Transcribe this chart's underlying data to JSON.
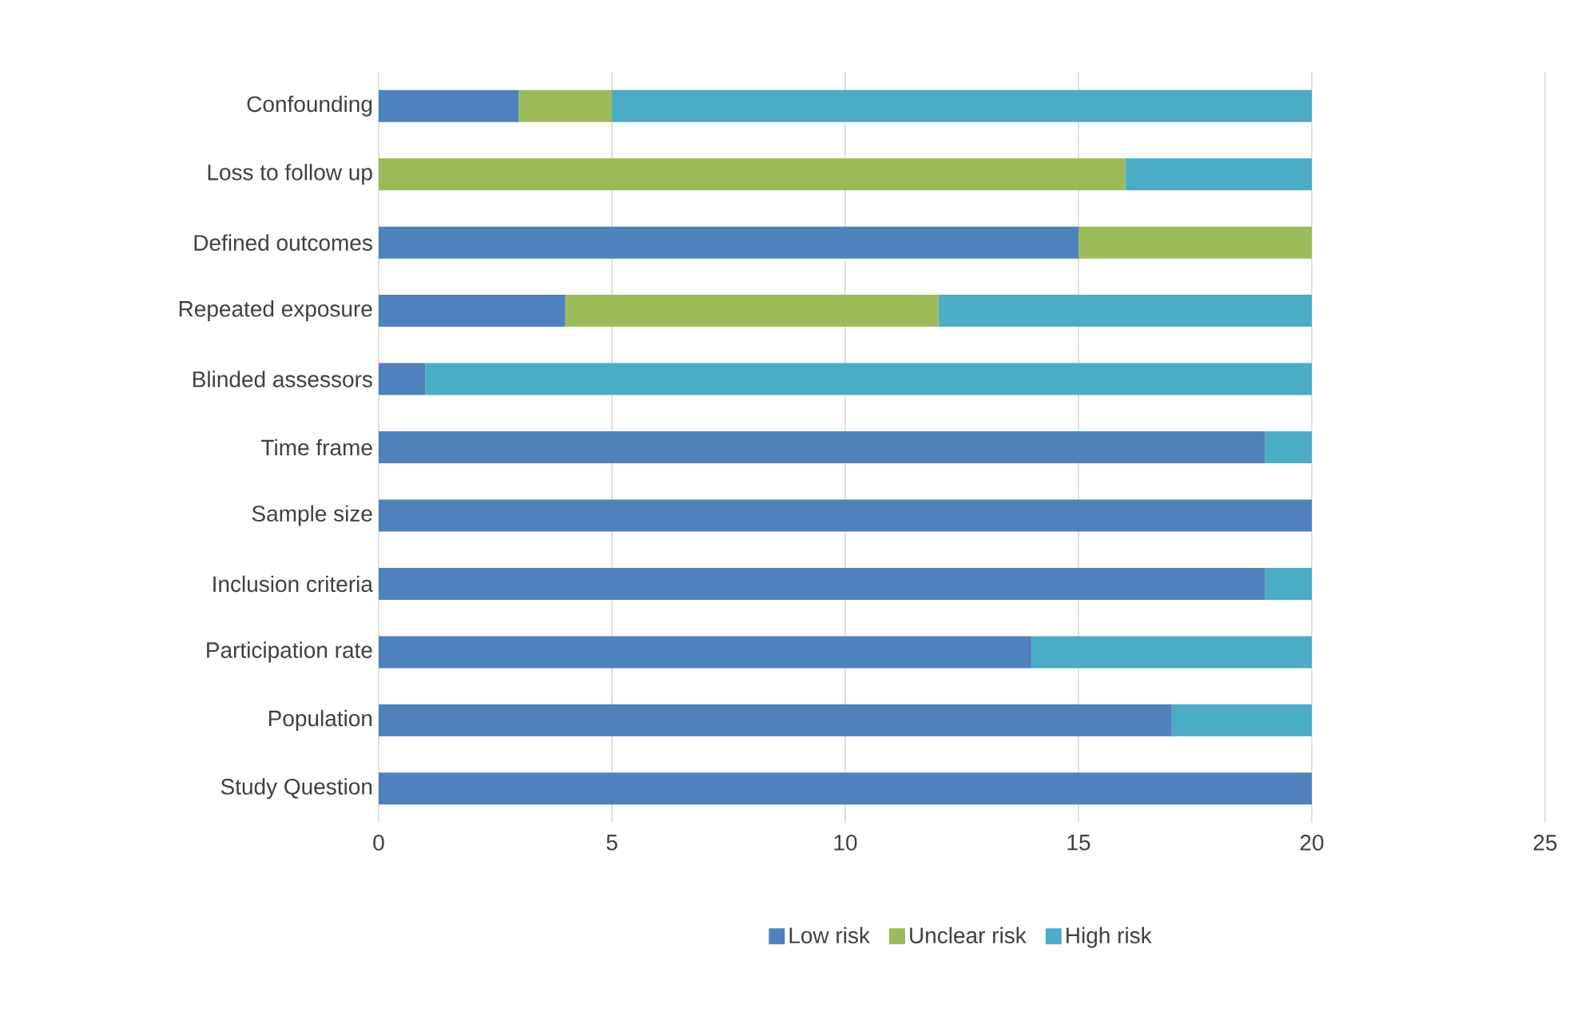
{
  "chart_data": {
    "type": "bar",
    "orientation": "horizontal",
    "stacked": true,
    "categories": [
      "Confounding",
      "Loss to follow up",
      "Defined outcomes",
      "Repeated exposure",
      "Blinded assessors",
      "Time frame",
      "Sample size",
      "Inclusion criteria",
      "Participation rate",
      "Population",
      "Study Question"
    ],
    "series": [
      {
        "name": "Low risk",
        "color": "#4f81bd",
        "values": [
          3,
          0,
          15,
          4,
          1,
          19,
          20,
          19,
          14,
          17,
          20
        ]
      },
      {
        "name": "Unclear risk",
        "color": "#9bbb59",
        "values": [
          2,
          16,
          5,
          8,
          0,
          0,
          0,
          0,
          0,
          0,
          0
        ]
      },
      {
        "name": "High risk",
        "color": "#4bacc6",
        "values": [
          15,
          4,
          0,
          8,
          19,
          1,
          0,
          1,
          6,
          3,
          0
        ]
      }
    ],
    "xlim": [
      0,
      25
    ],
    "xticks": [
      0,
      5,
      10,
      15,
      20,
      25
    ],
    "grid": "x",
    "legend": "bottom"
  }
}
